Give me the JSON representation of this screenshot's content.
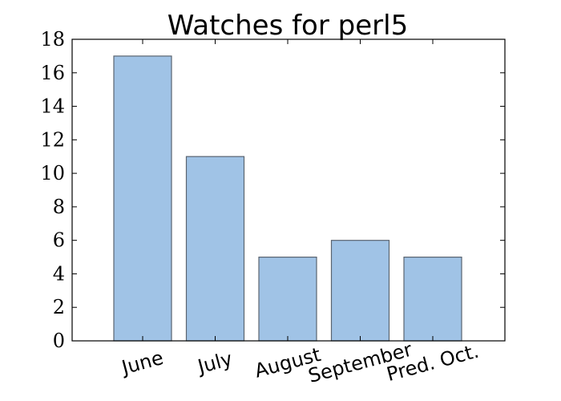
{
  "chart_data": {
    "type": "bar",
    "title": "Watches for perl5",
    "xlabel": "",
    "ylabel": "",
    "categories": [
      "June",
      "July",
      "August",
      "September",
      "Pred. Oct."
    ],
    "values": [
      17,
      11,
      5,
      6,
      5
    ],
    "ylim": [
      0,
      18
    ],
    "yticks": [
      0,
      2,
      4,
      6,
      8,
      10,
      12,
      14,
      16,
      18
    ],
    "grid": false,
    "bar_color": "#a0c3e6",
    "bar_edge_color": "#5a6470"
  }
}
